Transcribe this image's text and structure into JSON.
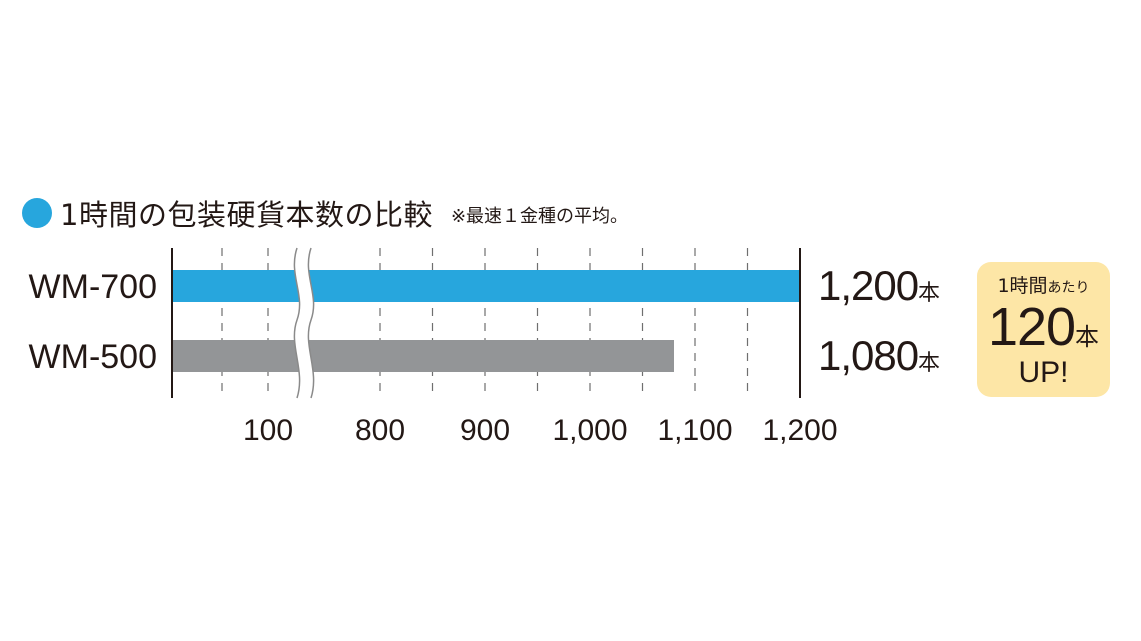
{
  "header": {
    "title": "1時間の包装硬貨本数の比較",
    "note": "※最速１金種の平均。"
  },
  "chart_data": {
    "type": "bar",
    "orientation": "horizontal",
    "axis_break": "between 100 and 800",
    "categories": [
      "WM-700",
      "WM-500"
    ],
    "series": [
      {
        "values": [
          1200,
          1080
        ],
        "colors": [
          "#27a6dd",
          "#939597"
        ]
      }
    ],
    "value_labels": [
      "1,200",
      "1,080"
    ],
    "value_unit": "本",
    "x_ticks": [
      {
        "value": 100,
        "label": "100"
      },
      {
        "value": 800,
        "label": "800"
      },
      {
        "value": 900,
        "label": "900"
      },
      {
        "value": 1000,
        "label": "1,000"
      },
      {
        "value": 1100,
        "label": "1,100"
      },
      {
        "value": 1200,
        "label": "1,200"
      }
    ],
    "grid": true,
    "grid_style": "dashed vertical"
  },
  "callout": {
    "line1_main": "1時間",
    "line1_small": "あたり",
    "value": "120",
    "unit": "本",
    "line3": "UP!"
  }
}
